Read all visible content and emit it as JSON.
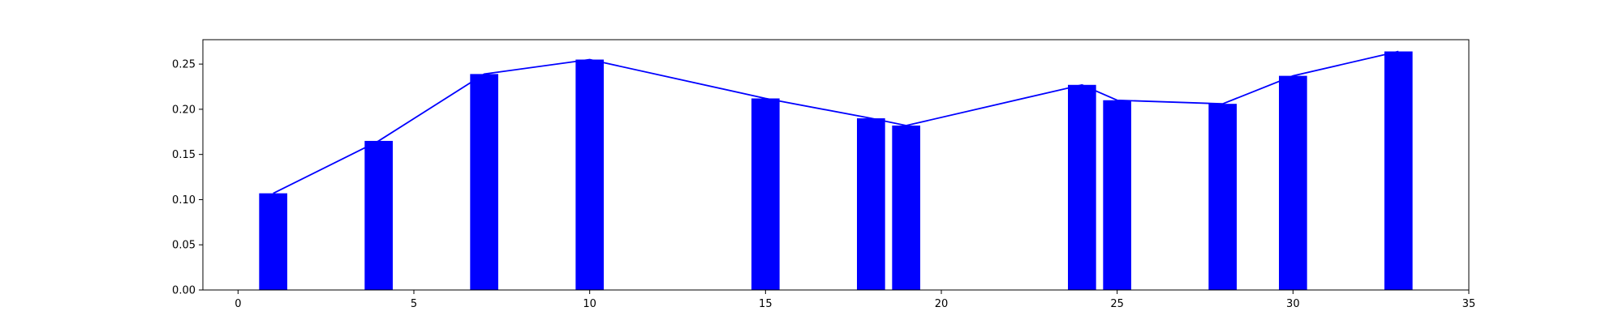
{
  "chart_data": {
    "type": "bar",
    "title": "",
    "xlabel": "",
    "ylabel": "",
    "xlim": [
      -1,
      35
    ],
    "ylim": [
      0,
      0.277
    ],
    "xticks": [
      0,
      5,
      10,
      15,
      20,
      25,
      30,
      35
    ],
    "yticks": [
      0.0,
      0.05,
      0.1,
      0.15,
      0.2,
      0.25
    ],
    "xtick_labels": [
      "0",
      "5",
      "10",
      "15",
      "20",
      "25",
      "30",
      "35"
    ],
    "ytick_labels": [
      "0.00",
      "0.05",
      "0.10",
      "0.15",
      "0.20",
      "0.25"
    ],
    "grid": false,
    "bar_width": 0.8,
    "x": [
      1,
      4,
      7,
      10,
      15,
      18,
      19,
      24,
      25,
      28,
      30,
      33
    ],
    "values": [
      0.107,
      0.165,
      0.239,
      0.255,
      0.212,
      0.19,
      0.182,
      0.227,
      0.21,
      0.206,
      0.237,
      0.264
    ],
    "bar_color": "#0000ff",
    "line_color": "#0000ff",
    "overlay_line": true
  }
}
